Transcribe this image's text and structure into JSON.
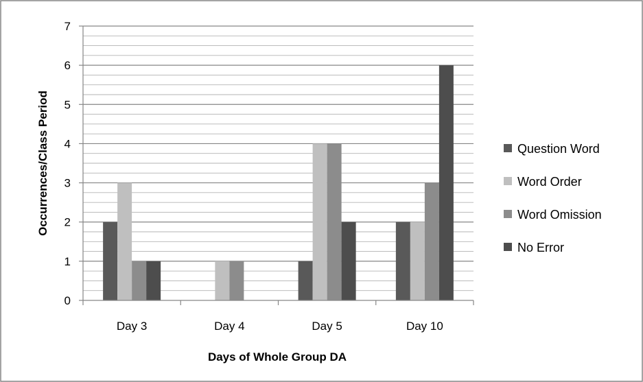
{
  "chart_data": {
    "type": "bar",
    "categories": [
      "Day 3",
      "Day 4",
      "Day 5",
      "Day 10"
    ],
    "series": [
      {
        "name": "Question Word",
        "values": [
          2,
          0,
          1,
          2
        ],
        "color": "#595959"
      },
      {
        "name": "Word Order",
        "values": [
          3,
          1,
          4,
          2
        ],
        "color": "#bfbfbf"
      },
      {
        "name": "Word Omission",
        "values": [
          1,
          1,
          4,
          3
        ],
        "color": "#8c8c8c"
      },
      {
        "name": "No Error",
        "values": [
          1,
          0,
          2,
          6
        ],
        "color": "#4d4d4d"
      }
    ],
    "title": "",
    "xlabel": "Days of Whole Group DA",
    "ylabel": "Occurrences/Class Period",
    "ylim": [
      0,
      7
    ],
    "yticks": [
      "0",
      "1",
      "2",
      "3",
      "4",
      "5",
      "6",
      "7"
    ],
    "grid": true,
    "legend_position": "right"
  }
}
